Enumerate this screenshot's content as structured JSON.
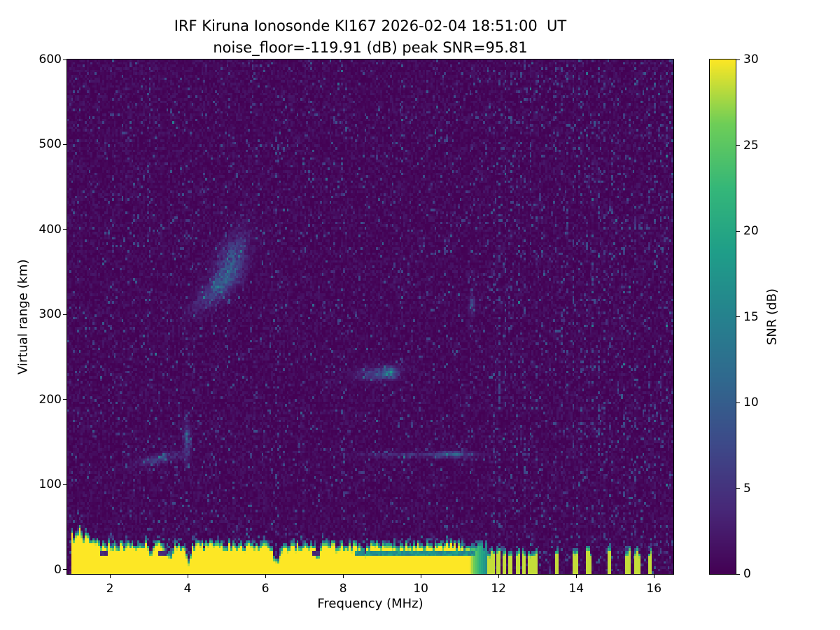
{
  "chart_data": {
    "type": "heatmap",
    "title": "IRF Kiruna Ionosonde KI167 2026-02-04 18:51:00  UT",
    "subtitle": "noise_floor=-119.91 (dB) peak SNR=95.81",
    "xlabel": "Frequency (MHz)",
    "ylabel": "Virtual range (km)",
    "xlim": [
      0.9,
      16.5
    ],
    "ylim": [
      -5,
      600
    ],
    "x_ticks": [
      2,
      4,
      6,
      8,
      10,
      12,
      14,
      16
    ],
    "y_ticks": [
      0,
      100,
      200,
      300,
      400,
      500,
      600
    ],
    "grid": false,
    "colorbar": {
      "label": "SNR (dB)",
      "ticks": [
        0,
        5,
        10,
        15,
        20,
        25,
        30
      ],
      "vmin": 0,
      "vmax": 30,
      "colormap": "viridis",
      "stops": [
        [
          0,
          "#440154"
        ],
        [
          0.125,
          "#482878"
        ],
        [
          0.25,
          "#3e4989"
        ],
        [
          0.375,
          "#31688e"
        ],
        [
          0.5,
          "#26828e"
        ],
        [
          0.625,
          "#1f9e89"
        ],
        [
          0.75,
          "#35b779"
        ],
        [
          0.875,
          "#6ece58"
        ],
        [
          1,
          "#fde725"
        ]
      ]
    },
    "features": {
      "noise": {
        "base": 2.2,
        "speckle_prob": 0.04,
        "speckle_snr_min": 2,
        "speckle_snr_max": 6.5
      },
      "ground_clutter": {
        "description": "saturated near-range clutter band ~0-35 km from 1.0 to 11.6 MHz with teal fringe on top",
        "start_mhz": 1.0,
        "top_km": 31,
        "jitter_km": 5,
        "left_fringe_km": 13,
        "fade_start_mhz": 11.25,
        "fade_end_mhz": 11.68,
        "notches": [
          {
            "f": 3.05,
            "d": 10,
            "w": 0.06
          },
          {
            "f": 3.5,
            "d": 15,
            "w": 0.1
          },
          {
            "f": 4.02,
            "d": 19,
            "w": 0.08
          },
          {
            "f": 6.3,
            "d": 21,
            "w": 0.1
          },
          {
            "f": 7.35,
            "d": 12,
            "w": 0.07
          },
          {
            "f": 8.6,
            "d": 8,
            "w": 0.05
          }
        ]
      },
      "tx_bars_mhz": [
        11.72,
        11.86,
        12.0,
        12.15,
        12.3,
        12.49,
        12.63,
        12.82,
        12.96,
        13.48,
        13.97,
        14.33,
        14.84,
        15.32,
        15.58,
        15.9
      ],
      "echoes": [
        {
          "name": "Es-trace",
          "f": 3.3,
          "fw": 0.5,
          "km": 131,
          "kh": 5,
          "snr": 9,
          "tilt": 10
        },
        {
          "name": "Es-spread",
          "f": 3.98,
          "fw": 0.09,
          "km": 152,
          "kh": 20,
          "snr": 9,
          "tilt": 0
        },
        {
          "name": "F-patch-lower",
          "f": 4.75,
          "fw": 0.55,
          "km": 330,
          "kh": 13,
          "snr": 8,
          "tilt": 35
        },
        {
          "name": "F-patch-upper",
          "f": 5.1,
          "fw": 0.4,
          "km": 360,
          "kh": 25,
          "snr": 11,
          "tilt": 45
        },
        {
          "name": "mid-echo",
          "f": 8.85,
          "fw": 0.5,
          "km": 231,
          "kh": 7,
          "snr": 9,
          "tilt": 4
        },
        {
          "name": "mid-echo-bright",
          "f": 9.2,
          "fw": 0.18,
          "km": 231,
          "kh": 6,
          "snr": 15,
          "tilt": 0
        },
        {
          "name": "low-flat-trace",
          "f": 9.8,
          "fw": 1.3,
          "km": 135,
          "kh": 2.5,
          "snr": 6,
          "tilt": 0
        },
        {
          "name": "low-flat-bright",
          "f": 10.85,
          "fw": 0.45,
          "km": 136,
          "kh": 3.5,
          "snr": 11,
          "tilt": 0
        },
        {
          "name": "rfi-blob",
          "f": 11.32,
          "fw": 0.07,
          "km": 312,
          "kh": 12,
          "snr": 8,
          "tilt": 0
        }
      ],
      "rfi_columns": [
        {
          "f": 2.08,
          "s": 1.2
        },
        {
          "f": 3.02,
          "s": 1.8
        },
        {
          "f": 3.97,
          "s": 2.2
        },
        {
          "f": 5.03,
          "s": 1.2
        },
        {
          "f": 6.3,
          "s": 2.6
        },
        {
          "f": 7.0,
          "s": 1.4
        },
        {
          "f": 8.0,
          "s": 2.2
        },
        {
          "f": 8.55,
          "s": 1.5
        },
        {
          "f": 9.5,
          "s": 2.2
        },
        {
          "f": 10.35,
          "s": 1.8
        },
        {
          "f": 10.65,
          "s": 1.8
        },
        {
          "f": 11.3,
          "s": 2.2
        }
      ],
      "dense_rfi": {
        "start": 11.7,
        "end": 16.5,
        "spacing": 0.16,
        "strength": 4
      },
      "dark_dashes": [
        {
          "f": 1.87,
          "km": 19
        },
        {
          "f": 3.35,
          "km": 19
        },
        {
          "f": 7.3,
          "km": 19
        }
      ]
    }
  }
}
